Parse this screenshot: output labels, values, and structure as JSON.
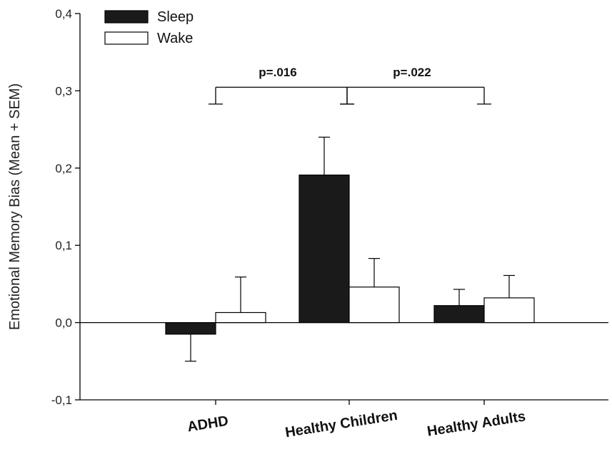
{
  "chart_data": {
    "type": "bar",
    "ylabel": "Emotional Memory Bias (Mean + SEM)",
    "xlabel": "",
    "ylim": [
      -0.1,
      0.4
    ],
    "yticks": [
      -0.1,
      0.0,
      0.1,
      0.2,
      0.3,
      0.4
    ],
    "ytick_labels": [
      "-0,1",
      "0,0",
      "0,1",
      "0,2",
      "0,3",
      "0,4"
    ],
    "categories": [
      "ADHD",
      "Healthy Children",
      "Healthy Adults"
    ],
    "series": [
      {
        "name": "Sleep",
        "color": "#1a1a1a",
        "values": [
          -0.015,
          0.191,
          0.022
        ],
        "sem": [
          0.035,
          0.049,
          0.021
        ]
      },
      {
        "name": "Wake",
        "color": "#ffffff",
        "values": [
          0.013,
          0.046,
          0.032
        ],
        "sem": [
          0.046,
          0.037,
          0.029
        ]
      }
    ],
    "legend_position": "top-left",
    "grid": false,
    "annotations": [
      {
        "label": "p=.016",
        "from_category": "ADHD",
        "to_category": "Healthy Children",
        "y": 0.3
      },
      {
        "label": "p=.022",
        "from_category": "Healthy Children",
        "to_category": "Healthy Adults",
        "y": 0.3
      }
    ]
  }
}
